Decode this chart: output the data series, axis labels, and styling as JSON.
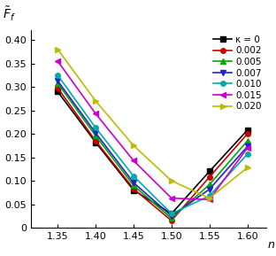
{
  "x": [
    1.35,
    1.4,
    1.45,
    1.5,
    1.55,
    1.6
  ],
  "series": [
    {
      "label": "κ = 0",
      "color": "#000000",
      "marker": "s",
      "marker_size": 4,
      "linewidth": 1.2,
      "values": [
        0.29,
        0.182,
        0.08,
        0.03,
        0.12,
        0.208
      ]
    },
    {
      "label": "0.002",
      "color": "#cc0000",
      "marker": "o",
      "marker_size": 4,
      "linewidth": 1.2,
      "values": [
        0.298,
        0.185,
        0.083,
        0.015,
        0.108,
        0.2
      ]
    },
    {
      "label": "0.005",
      "color": "#00aa00",
      "marker": "^",
      "marker_size": 4,
      "linewidth": 1.2,
      "values": [
        0.308,
        0.196,
        0.09,
        0.02,
        0.092,
        0.185
      ]
    },
    {
      "label": "0.007",
      "color": "#2222cc",
      "marker": "v",
      "marker_size": 4,
      "linewidth": 1.2,
      "values": [
        0.313,
        0.202,
        0.096,
        0.025,
        0.082,
        0.173
      ]
    },
    {
      "label": "0.010",
      "color": "#00aaaa",
      "marker": "o",
      "marker_size": 4,
      "linewidth": 1.2,
      "values": [
        0.325,
        0.213,
        0.11,
        0.03,
        0.068,
        0.157
      ]
    },
    {
      "label": "0.015",
      "color": "#cc00cc",
      "marker": "<",
      "marker_size": 4,
      "linewidth": 1.2,
      "values": [
        0.355,
        0.243,
        0.143,
        0.063,
        0.06,
        0.17
      ]
    },
    {
      "label": "0.020",
      "color": "#bbbb00",
      "marker": ">",
      "marker_size": 4,
      "linewidth": 1.2,
      "values": [
        0.38,
        0.27,
        0.175,
        0.1,
        0.063,
        0.128
      ]
    }
  ],
  "xlabel": "$n$",
  "ylabel": "$\\tilde{F}_f$",
  "xlim": [
    1.315,
    1.625
  ],
  "ylim": [
    0,
    0.42
  ],
  "xticks": [
    1.35,
    1.4,
    1.45,
    1.5,
    1.55,
    1.6
  ],
  "yticks": [
    0,
    0.05,
    0.1,
    0.15,
    0.2,
    0.25,
    0.3,
    0.35,
    0.4
  ],
  "ytick_labels": [
    "0",
    "0.05",
    "0.10",
    "0.15",
    "0.20",
    "0.25",
    "0.30",
    "0.35",
    "0.40"
  ],
  "xtick_labels": [
    "1.35",
    "1.40",
    "1.45",
    "1.50",
    "1.55",
    "1.60"
  ],
  "legend_loc": "upper right",
  "figsize": [
    3.12,
    2.89
  ],
  "dpi": 100
}
